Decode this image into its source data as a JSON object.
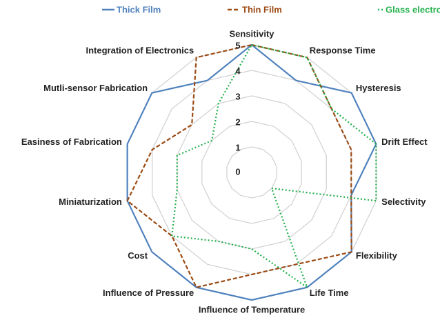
{
  "chart_data": {
    "type": "radar",
    "categories": [
      "Sensitivity",
      "Response Time",
      "Hysteresis",
      "Drift Effect",
      "Selectivity",
      "Flexibility",
      "Life Time",
      "Influence of Temperature",
      "Influence of Pressure",
      "Cost",
      "Miniaturization",
      "Easiness of Fabrication",
      "Mutli-sensor Fabrication",
      "Integration of Electronics"
    ],
    "series": [
      {
        "name": "Thick Film",
        "color": "#4f81bd",
        "dash": "solid",
        "values": [
          5,
          4,
          5,
          5,
          4,
          5,
          5,
          5,
          5,
          5,
          5,
          5,
          5,
          4
        ]
      },
      {
        "name": "Thin Film",
        "color": "#9c4a13",
        "dash": "dashed",
        "values": [
          5,
          5,
          4,
          4,
          4,
          5,
          4,
          4,
          5,
          4,
          5,
          4,
          3,
          5
        ]
      },
      {
        "name": "Glass electrode",
        "color": "#22b04b",
        "dash": "dotted",
        "values": [
          5,
          5,
          4,
          5,
          5,
          1,
          5,
          3,
          3,
          4,
          3,
          3,
          2,
          3
        ]
      }
    ],
    "rlim": [
      0,
      5
    ],
    "rticks": [
      0,
      1,
      2,
      3,
      4,
      5
    ],
    "grid": true,
    "legend": "top"
  }
}
